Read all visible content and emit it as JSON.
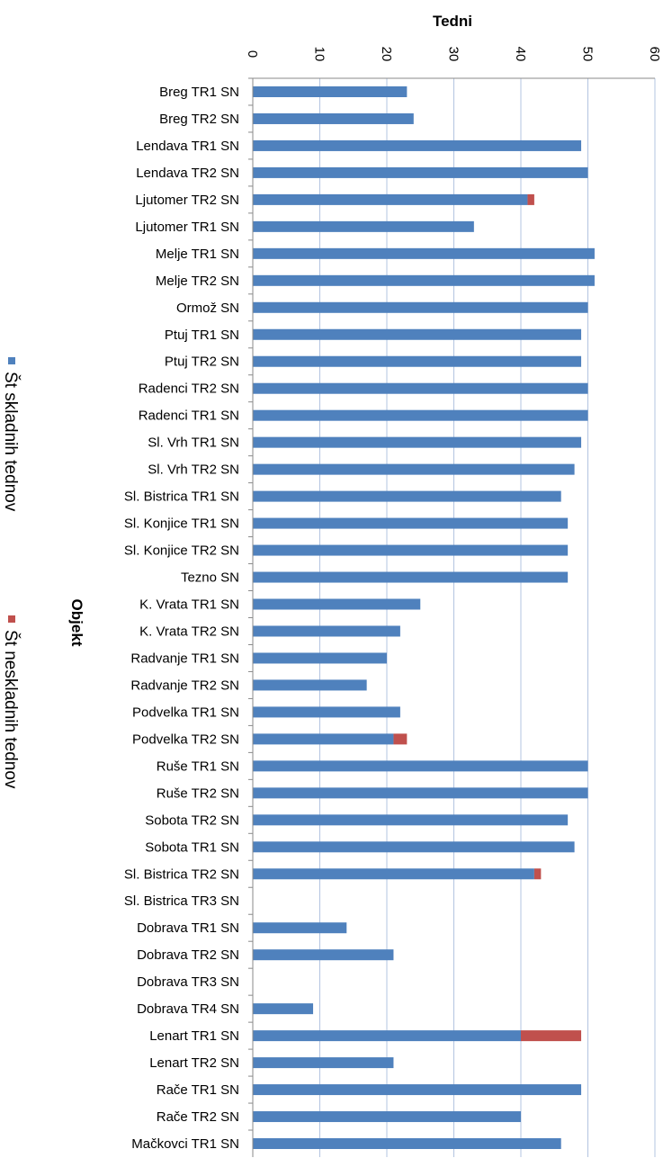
{
  "chart_data": {
    "type": "bar",
    "orientation": "horizontal",
    "stacked": true,
    "xlabel": "Tedni",
    "ylabel": "Objekt",
    "xlim": [
      0,
      60
    ],
    "xticks": [
      0,
      10,
      20,
      30,
      40,
      50,
      60
    ],
    "grid": true,
    "legend_position": "left",
    "categories": [
      "Breg TR1 SN",
      "Breg TR2 SN",
      "Lendava TR1 SN",
      "Lendava TR2 SN",
      "Ljutomer TR2 SN",
      "Ljutomer TR1 SN",
      "Melje TR1 SN",
      "Melje TR2 SN",
      "Ormož SN",
      "Ptuj TR1 SN",
      "Ptuj TR2 SN",
      "Radenci TR2 SN",
      "Radenci TR1 SN",
      "Sl. Vrh TR1 SN",
      "Sl. Vrh TR2 SN",
      "Sl. Bistrica TR1 SN",
      "Sl. Konjice TR1 SN",
      "Sl. Konjice TR2 SN",
      "Tezno SN",
      "K. Vrata TR1 SN",
      "K. Vrata TR2 SN",
      "Radvanje TR1 SN",
      "Radvanje TR2 SN",
      "Podvelka TR1 SN",
      "Podvelka TR2 SN",
      "Ruše TR1 SN",
      "Ruše TR2 SN",
      "Sobota TR2 SN",
      "Sobota TR1 SN",
      "Sl. Bistrica TR2 SN",
      "Sl. Bistrica TR3 SN",
      "Dobrava TR1 SN",
      "Dobrava TR2 SN",
      "Dobrava TR3 SN",
      "Dobrava TR4 SN",
      "Lenart TR1 SN",
      "Lenart TR2 SN",
      "Rače TR1 SN",
      "Rače TR2 SN",
      "Mačkovci TR1 SN"
    ],
    "series": [
      {
        "name": "Št skladnih tednov",
        "color": "#4f81bd",
        "values": [
          23,
          24,
          49,
          50,
          41,
          33,
          51,
          51,
          50,
          49,
          49,
          50,
          50,
          49,
          48,
          46,
          47,
          47,
          47,
          25,
          22,
          20,
          17,
          22,
          21,
          50,
          50,
          47,
          48,
          42,
          0,
          14,
          21,
          0,
          9,
          40,
          21,
          49,
          40,
          46
        ]
      },
      {
        "name": "Št neskladnih tednov",
        "color": "#c0504d",
        "values": [
          0,
          0,
          0,
          0,
          1,
          0,
          0,
          0,
          0,
          0,
          0,
          0,
          0,
          0,
          0,
          0,
          0,
          0,
          0,
          0,
          0,
          0,
          0,
          0,
          2,
          0,
          0,
          0,
          0,
          1,
          0,
          0,
          0,
          0,
          0,
          9,
          0,
          0,
          0,
          0
        ]
      }
    ]
  }
}
